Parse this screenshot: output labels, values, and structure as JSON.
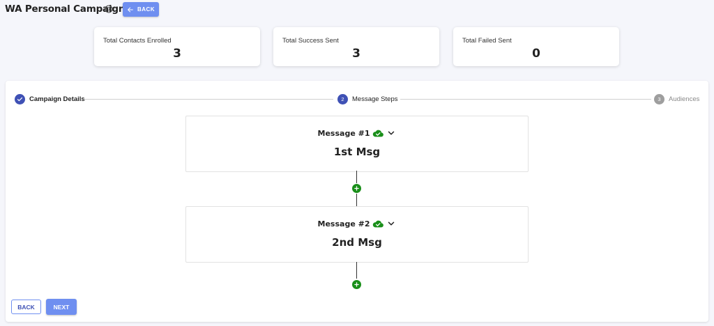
{
  "header": {
    "title": "WA Personal Campaign",
    "help_icon": "help-circle-icon",
    "back_label": "BACK"
  },
  "stats": [
    {
      "label": "Total Contacts Enrolled",
      "value": "3"
    },
    {
      "label": "Total Success Sent",
      "value": "3"
    },
    {
      "label": "Total Failed Sent",
      "value": "0"
    }
  ],
  "stepper": {
    "steps": [
      {
        "number": "1",
        "label": "Campaign Details",
        "state": "completed"
      },
      {
        "number": "2",
        "label": "Message Steps",
        "state": "active"
      },
      {
        "number": "3",
        "label": "Audiences",
        "state": "pending"
      }
    ]
  },
  "messages": [
    {
      "title": "Message #1",
      "body": "1st Msg",
      "status_icon": "cloud-check-icon"
    },
    {
      "title": "Message #2",
      "body": "2nd Msg",
      "status_icon": "cloud-check-icon"
    }
  ],
  "footer": {
    "back_label": "BACK",
    "next_label": "NEXT"
  },
  "colors": {
    "primary": "#3f51b5",
    "button": "#6f8ff0",
    "success": "#1a8f1a",
    "pending": "#9e9e9e"
  }
}
